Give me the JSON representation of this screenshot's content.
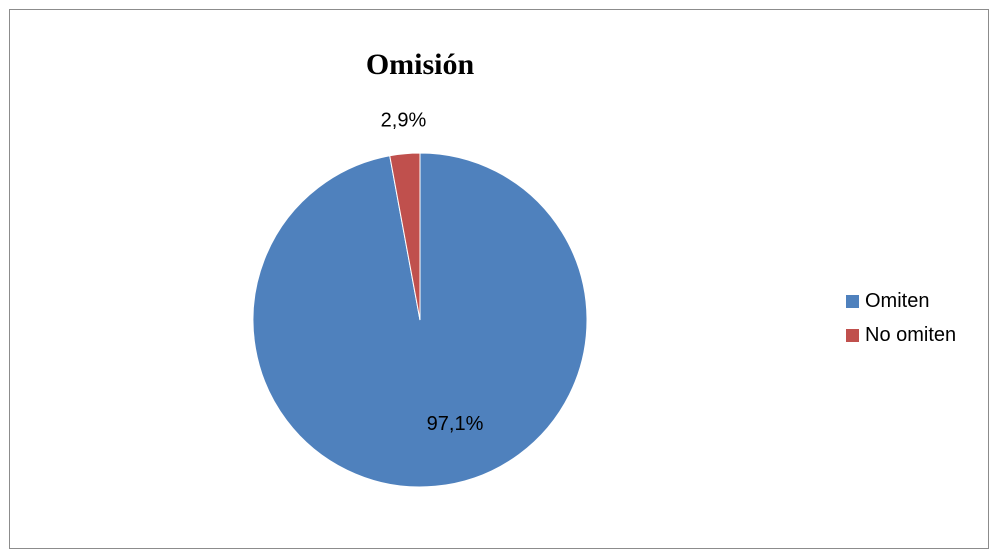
{
  "chart_data": {
    "type": "pie",
    "title": "Omisión",
    "categories": [
      "Omiten",
      "No omiten"
    ],
    "values": [
      97.1,
      2.9
    ],
    "data_labels": [
      "97,1%",
      "2,9%"
    ],
    "colors": [
      "#4f81bd",
      "#c0504d"
    ],
    "legend_position": "right"
  }
}
